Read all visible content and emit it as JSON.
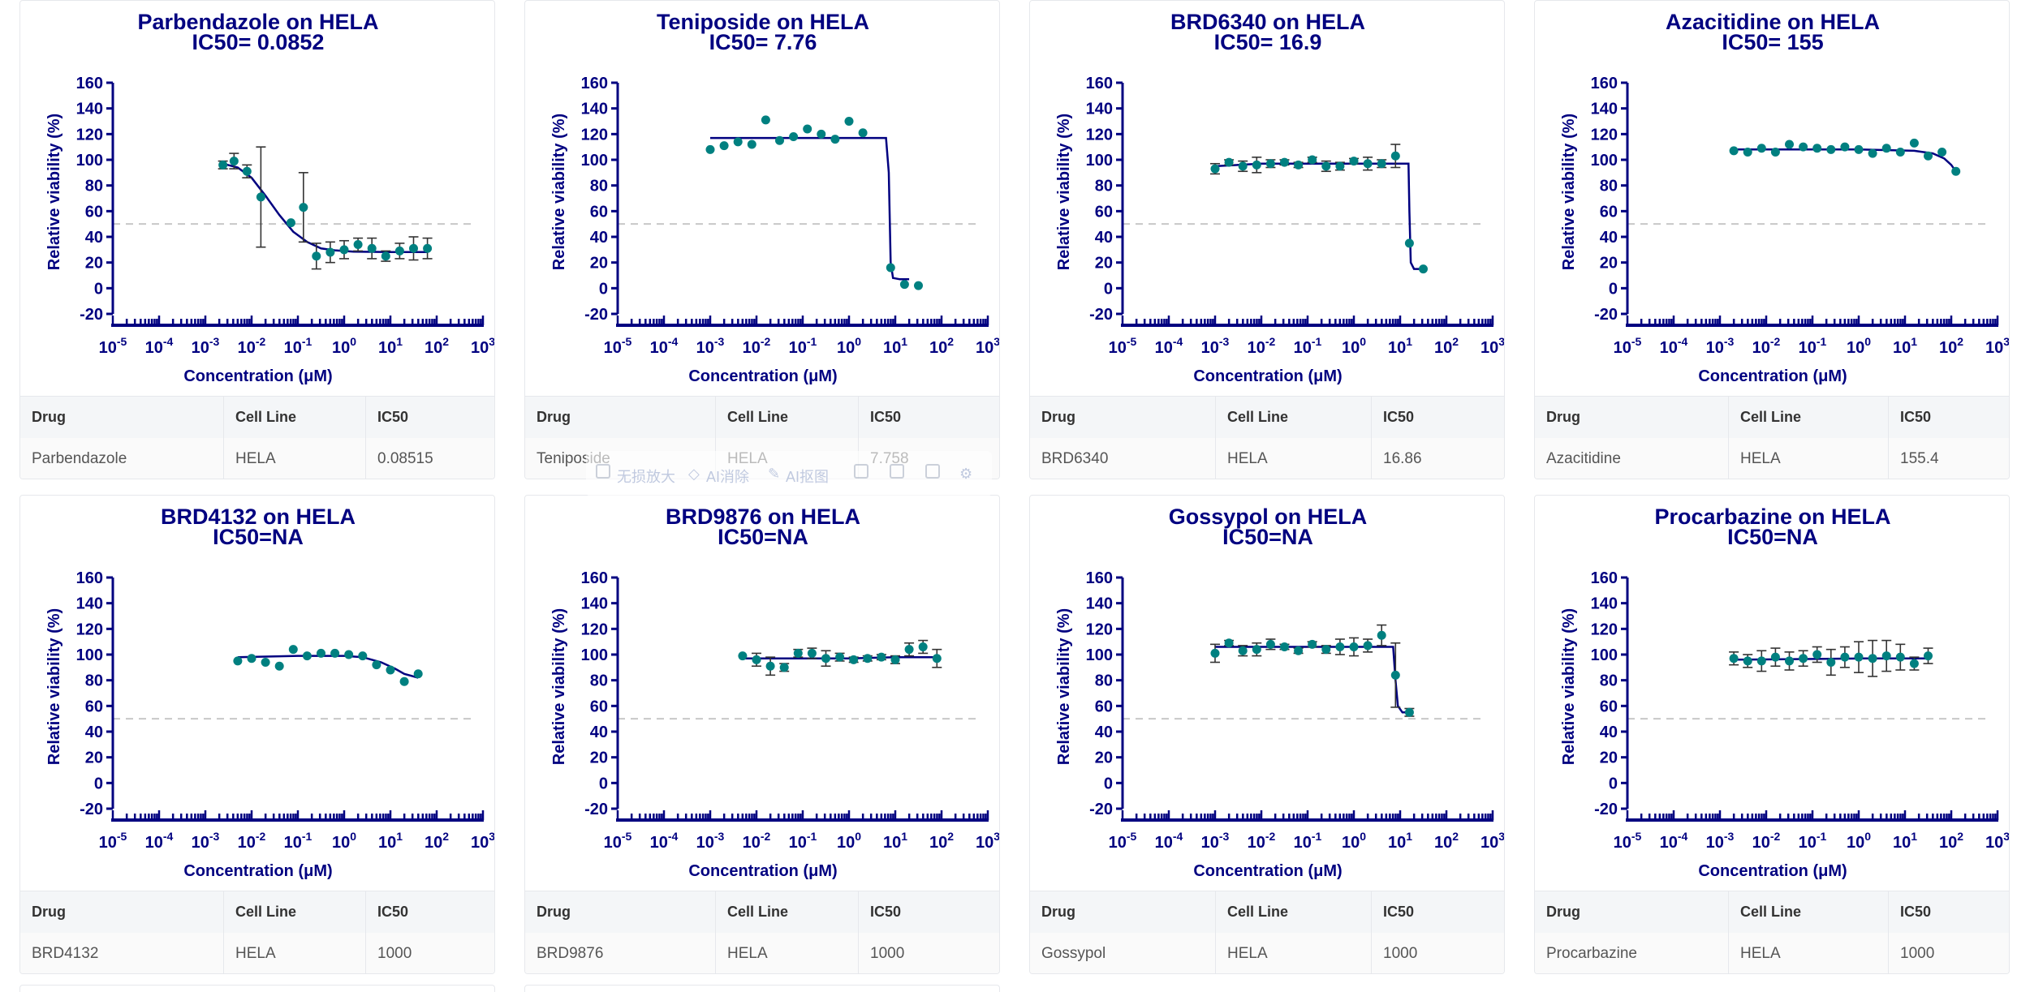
{
  "colors": {
    "title": "#000080",
    "axis": "#000080",
    "point": "#008080",
    "curve": "#000080",
    "ref": "#c8c8c8",
    "errbar": "#333333"
  },
  "table_headers": {
    "drug": "Drug",
    "cell_line": "Cell Line",
    "ic50": "IC50"
  },
  "chart_data": [
    {
      "type": "scatter",
      "title": "Parbendazole on HELA",
      "subtitle": "IC50= 0.0852",
      "xlabel": "Concentration (μM)",
      "ylabel": "Relative viability (%)",
      "xscale": "log",
      "xlim": [
        -5,
        3
      ],
      "ylim": [
        -20,
        160
      ],
      "yticks": [
        -20,
        0,
        20,
        40,
        60,
        80,
        100,
        120,
        140,
        160
      ],
      "xtick_exponents": [
        -5,
        -4,
        -3,
        -2,
        -1,
        0,
        1,
        2,
        3
      ],
      "ref_line": 50,
      "points": [
        [
          -2.62,
          96,
          3
        ],
        [
          -2.38,
          99,
          6
        ],
        [
          -2.1,
          91,
          5
        ],
        [
          -1.8,
          71,
          39
        ],
        [
          -1.15,
          51,
          0
        ],
        [
          -0.88,
          63,
          27
        ],
        [
          -0.6,
          25,
          10
        ],
        [
          -0.3,
          28,
          8
        ],
        [
          0,
          30,
          7
        ],
        [
          0.3,
          34,
          5
        ],
        [
          0.6,
          31,
          8
        ],
        [
          0.9,
          25,
          4
        ],
        [
          1.2,
          29,
          6
        ],
        [
          1.5,
          31,
          9
        ],
        [
          1.8,
          31,
          8
        ]
      ],
      "curve": [
        [
          -2.62,
          97
        ],
        [
          -2.3,
          94
        ],
        [
          -2.0,
          86
        ],
        [
          -1.7,
          72
        ],
        [
          -1.4,
          57
        ],
        [
          -1.1,
          44
        ],
        [
          -0.8,
          36
        ],
        [
          -0.5,
          31
        ],
        [
          -0.2,
          29.5
        ],
        [
          0.2,
          28.5
        ],
        [
          1.0,
          28.2
        ],
        [
          1.8,
          28.2
        ]
      ],
      "table": {
        "drug": "Parbendazole",
        "cell_line": "HELA",
        "ic50": "0.08515"
      }
    },
    {
      "type": "scatter",
      "title": "Teniposide on HELA",
      "subtitle": "IC50= 7.76",
      "xlabel": "Concentration (μM)",
      "ylabel": "Relative viability (%)",
      "xscale": "log",
      "xlim": [
        -5,
        3
      ],
      "ylim": [
        -20,
        160
      ],
      "yticks": [
        -20,
        0,
        20,
        40,
        60,
        80,
        100,
        120,
        140,
        160
      ],
      "xtick_exponents": [
        -5,
        -4,
        -3,
        -2,
        -1,
        0,
        1,
        2,
        3
      ],
      "ref_line": 50,
      "points": [
        [
          -3.0,
          108,
          0
        ],
        [
          -2.7,
          111,
          0
        ],
        [
          -2.4,
          114,
          0
        ],
        [
          -2.1,
          112,
          0
        ],
        [
          -1.8,
          131,
          0
        ],
        [
          -1.5,
          115,
          0
        ],
        [
          -1.2,
          118,
          0
        ],
        [
          -0.9,
          124,
          0
        ],
        [
          -0.6,
          120,
          0
        ],
        [
          -0.3,
          116,
          0
        ],
        [
          0,
          130,
          0
        ],
        [
          0.3,
          121,
          0
        ],
        [
          0.9,
          16,
          0
        ],
        [
          1.2,
          3,
          0
        ],
        [
          1.5,
          2,
          0
        ]
      ],
      "curve": [
        [
          -3.0,
          117
        ],
        [
          0.8,
          117
        ],
        [
          0.86,
          90
        ],
        [
          0.9,
          20
        ],
        [
          0.95,
          8
        ],
        [
          1.1,
          7
        ],
        [
          1.3,
          7
        ]
      ],
      "table": {
        "drug": "Teniposide",
        "cell_line": "HELA",
        "ic50": "7.758"
      }
    },
    {
      "type": "scatter",
      "title": "BRD6340 on HELA",
      "subtitle": "IC50= 16.9",
      "xlabel": "Concentration (μM)",
      "ylabel": "Relative viability (%)",
      "xscale": "log",
      "xlim": [
        -5,
        3
      ],
      "ylim": [
        -20,
        160
      ],
      "yticks": [
        -20,
        0,
        20,
        40,
        60,
        80,
        100,
        120,
        140,
        160
      ],
      "xtick_exponents": [
        -5,
        -4,
        -3,
        -2,
        -1,
        0,
        1,
        2,
        3
      ],
      "ref_line": 50,
      "points": [
        [
          -3.0,
          93,
          4
        ],
        [
          -2.7,
          98,
          2
        ],
        [
          -2.4,
          95,
          4
        ],
        [
          -2.1,
          96,
          6
        ],
        [
          -1.8,
          97,
          3
        ],
        [
          -1.5,
          98,
          2
        ],
        [
          -1.2,
          96,
          2
        ],
        [
          -0.9,
          100,
          2
        ],
        [
          -0.6,
          95,
          4
        ],
        [
          -0.3,
          95,
          3
        ],
        [
          0,
          99,
          2
        ],
        [
          0.3,
          97,
          5
        ],
        [
          0.6,
          97,
          3
        ],
        [
          0.9,
          103,
          9
        ],
        [
          1.2,
          35,
          0
        ],
        [
          1.5,
          15,
          0
        ]
      ],
      "curve": [
        [
          -3.0,
          95
        ],
        [
          -2.0,
          97
        ],
        [
          0,
          97
        ],
        [
          1.18,
          97
        ],
        [
          1.2,
          60
        ],
        [
          1.23,
          20
        ],
        [
          1.3,
          15
        ],
        [
          1.5,
          15
        ]
      ],
      "table": {
        "drug": "BRD6340",
        "cell_line": "HELA",
        "ic50": "16.86"
      }
    },
    {
      "type": "scatter",
      "title": "Azacitidine on HELA",
      "subtitle": "IC50= 155",
      "xlabel": "Concentration (μM)",
      "ylabel": "Relative viability (%)",
      "xscale": "log",
      "xlim": [
        -5,
        3
      ],
      "ylim": [
        -20,
        160
      ],
      "yticks": [
        -20,
        0,
        20,
        40,
        60,
        80,
        100,
        120,
        140,
        160
      ],
      "xtick_exponents": [
        -5,
        -4,
        -3,
        -2,
        -1,
        0,
        1,
        2,
        3
      ],
      "ref_line": 50,
      "points": [
        [
          -2.7,
          107,
          0
        ],
        [
          -2.4,
          106,
          0
        ],
        [
          -2.1,
          109,
          0
        ],
        [
          -1.8,
          106,
          0
        ],
        [
          -1.5,
          112,
          0
        ],
        [
          -1.2,
          110,
          0
        ],
        [
          -0.9,
          109,
          0
        ],
        [
          -0.6,
          108,
          0
        ],
        [
          -0.3,
          110,
          0
        ],
        [
          0,
          108,
          0
        ],
        [
          0.3,
          105,
          0
        ],
        [
          0.6,
          109,
          0
        ],
        [
          0.9,
          106,
          0
        ],
        [
          1.2,
          113,
          0
        ],
        [
          1.5,
          103,
          0
        ],
        [
          1.8,
          106,
          0
        ],
        [
          2.1,
          91,
          0
        ]
      ],
      "curve": [
        [
          -2.7,
          108
        ],
        [
          0,
          108
        ],
        [
          1.2,
          107
        ],
        [
          1.6,
          105
        ],
        [
          1.85,
          101
        ],
        [
          2.0,
          96
        ],
        [
          2.1,
          91
        ]
      ],
      "table": {
        "drug": "Azacitidine",
        "cell_line": "HELA",
        "ic50": "155.4"
      }
    },
    {
      "type": "scatter",
      "title": "BRD4132 on HELA",
      "subtitle": "IC50=NA",
      "xlabel": "Concentration (μM)",
      "ylabel": "Relative viability (%)",
      "xscale": "log",
      "xlim": [
        -5,
        3
      ],
      "ylim": [
        -20,
        160
      ],
      "yticks": [
        -20,
        0,
        20,
        40,
        60,
        80,
        100,
        120,
        140,
        160
      ],
      "xtick_exponents": [
        -5,
        -4,
        -3,
        -2,
        -1,
        0,
        1,
        2,
        3
      ],
      "ref_line": 50,
      "points": [
        [
          -2.3,
          95,
          0
        ],
        [
          -2.0,
          97,
          0
        ],
        [
          -1.7,
          94,
          0
        ],
        [
          -1.4,
          91,
          0
        ],
        [
          -1.1,
          104,
          0
        ],
        [
          -0.8,
          99,
          0
        ],
        [
          -0.5,
          101,
          0
        ],
        [
          -0.2,
          101,
          0
        ],
        [
          0.1,
          100,
          0
        ],
        [
          0.4,
          99,
          0
        ],
        [
          0.7,
          92,
          0
        ],
        [
          1.0,
          88,
          0
        ],
        [
          1.3,
          79,
          0
        ],
        [
          1.6,
          85,
          0
        ]
      ],
      "curve": [
        [
          -2.3,
          98
        ],
        [
          -1.0,
          99
        ],
        [
          0,
          99
        ],
        [
          0.4,
          98
        ],
        [
          0.8,
          94
        ],
        [
          1.1,
          89
        ],
        [
          1.3,
          85
        ],
        [
          1.6,
          82
        ]
      ],
      "table": {
        "drug": "BRD4132",
        "cell_line": "HELA",
        "ic50": "1000"
      }
    },
    {
      "type": "scatter",
      "title": "BRD9876 on HELA",
      "subtitle": "IC50=NA",
      "xlabel": "Concentration (μM)",
      "ylabel": "Relative viability (%)",
      "xscale": "log",
      "xlim": [
        -5,
        3
      ],
      "ylim": [
        -20,
        160
      ],
      "yticks": [
        -20,
        0,
        20,
        40,
        60,
        80,
        100,
        120,
        140,
        160
      ],
      "xtick_exponents": [
        -5,
        -4,
        -3,
        -2,
        -1,
        0,
        1,
        2,
        3
      ],
      "ref_line": 50,
      "points": [
        [
          -2.3,
          99,
          0
        ],
        [
          -2.0,
          96,
          5
        ],
        [
          -1.7,
          91,
          7
        ],
        [
          -1.4,
          90,
          3
        ],
        [
          -1.1,
          101,
          3
        ],
        [
          -0.8,
          101,
          4
        ],
        [
          -0.5,
          97,
          6
        ],
        [
          -0.2,
          98,
          3
        ],
        [
          0.1,
          96,
          2
        ],
        [
          0.4,
          97,
          2
        ],
        [
          0.7,
          98,
          2
        ],
        [
          1.0,
          96,
          3
        ],
        [
          1.3,
          104,
          5
        ],
        [
          1.6,
          106,
          5
        ],
        [
          1.9,
          97,
          7
        ]
      ],
      "curve": [
        [
          -2.3,
          97
        ],
        [
          -1.5,
          97
        ],
        [
          0,
          97
        ],
        [
          1.0,
          98
        ],
        [
          1.9,
          98
        ]
      ],
      "table": {
        "drug": "BRD9876",
        "cell_line": "HELA",
        "ic50": "1000"
      }
    },
    {
      "type": "scatter",
      "title": "Gossypol on HELA",
      "subtitle": "IC50=NA",
      "xlabel": "Concentration (μM)",
      "ylabel": "Relative viability (%)",
      "xscale": "log",
      "xlim": [
        -5,
        3
      ],
      "ylim": [
        -20,
        160
      ],
      "yticks": [
        -20,
        0,
        20,
        40,
        60,
        80,
        100,
        120,
        140,
        160
      ],
      "xtick_exponents": [
        -5,
        -4,
        -3,
        -2,
        -1,
        0,
        1,
        2,
        3
      ],
      "ref_line": 50,
      "points": [
        [
          -3.0,
          101,
          7
        ],
        [
          -2.7,
          109,
          2
        ],
        [
          -2.4,
          103,
          4
        ],
        [
          -2.1,
          104,
          5
        ],
        [
          -1.8,
          108,
          4
        ],
        [
          -1.5,
          106,
          2
        ],
        [
          -1.2,
          103,
          2
        ],
        [
          -0.9,
          108,
          2
        ],
        [
          -0.6,
          104,
          3
        ],
        [
          -0.3,
          106,
          6
        ],
        [
          0,
          106,
          7
        ],
        [
          0.3,
          107,
          5
        ],
        [
          0.6,
          115,
          8
        ],
        [
          0.9,
          84,
          25
        ],
        [
          1.2,
          55,
          3
        ]
      ],
      "curve": [
        [
          -3.0,
          106
        ],
        [
          0,
          106
        ],
        [
          0.85,
          106
        ],
        [
          0.9,
          80
        ],
        [
          0.95,
          60
        ],
        [
          1.05,
          55
        ],
        [
          1.2,
          55
        ]
      ],
      "table": {
        "drug": "Gossypol",
        "cell_line": "HELA",
        "ic50": "1000"
      }
    },
    {
      "type": "scatter",
      "title": "Procarbazine on HELA",
      "subtitle": "IC50=NA",
      "xlabel": "Concentration (μM)",
      "ylabel": "Relative viability (%)",
      "xscale": "log",
      "xlim": [
        -5,
        3
      ],
      "ylim": [
        -20,
        160
      ],
      "yticks": [
        -20,
        0,
        20,
        40,
        60,
        80,
        100,
        120,
        140,
        160
      ],
      "xtick_exponents": [
        -5,
        -4,
        -3,
        -2,
        -1,
        0,
        1,
        2,
        3
      ],
      "ref_line": 50,
      "points": [
        [
          -2.7,
          97,
          5
        ],
        [
          -2.4,
          95,
          5
        ],
        [
          -2.1,
          95,
          8
        ],
        [
          -1.8,
          98,
          7
        ],
        [
          -1.5,
          95,
          7
        ],
        [
          -1.2,
          97,
          6
        ],
        [
          -0.9,
          100,
          6
        ],
        [
          -0.6,
          94,
          10
        ],
        [
          -0.3,
          98,
          8
        ],
        [
          0,
          98,
          12
        ],
        [
          0.3,
          97,
          14
        ],
        [
          0.6,
          99,
          12
        ],
        [
          0.9,
          98,
          10
        ],
        [
          1.2,
          93,
          5
        ],
        [
          1.5,
          99,
          6
        ]
      ],
      "curve": [
        [
          -2.7,
          96
        ],
        [
          0,
          97
        ],
        [
          1.5,
          97
        ]
      ],
      "table": {
        "drug": "Procarbazine",
        "cell_line": "HELA",
        "ic50": "1000"
      }
    }
  ],
  "watermark_toolbar": {
    "lossless_zoom": "无损放大",
    "ai_erase": "AI消除",
    "ai_cutout": "AI抠图"
  }
}
